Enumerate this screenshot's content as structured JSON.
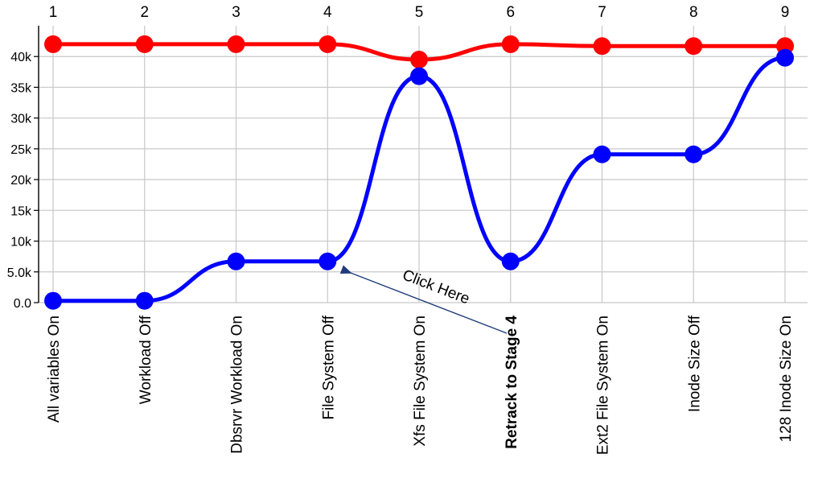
{
  "chart_data": {
    "type": "line",
    "top_labels": [
      "1",
      "2",
      "3",
      "4",
      "5",
      "6",
      "7",
      "8",
      "9"
    ],
    "categories": [
      "All variables On",
      "Workload Off",
      "Dbsrvr  Workload On",
      "File System Off",
      "Xfs File System On",
      "Retrack to Stage 4",
      "Ext2 File System On",
      "Inode Size Off",
      "128 Inode Size On"
    ],
    "bold_category_index": 5,
    "ylim": [
      0,
      45000
    ],
    "y_ticks": [
      0,
      5000,
      10000,
      15000,
      20000,
      25000,
      30000,
      35000,
      40000
    ],
    "y_tick_labels": [
      "0.0",
      "5.0k",
      "10k",
      "15k",
      "20k",
      "25k",
      "30k",
      "35k",
      "40k"
    ],
    "grid": true,
    "smooth": true,
    "series": [
      {
        "color": "#ff0000",
        "values": [
          42000,
          42000,
          42000,
          42000,
          39500,
          42000,
          41700,
          41700,
          41700
        ]
      },
      {
        "color": "#0000ff",
        "values": [
          300,
          300,
          6700,
          6700,
          36800,
          6700,
          24100,
          24100,
          39800
        ]
      }
    ],
    "annotation": {
      "text": "Click Here",
      "points_to_index": 3,
      "arrow_color": "#1f3b7a"
    }
  }
}
